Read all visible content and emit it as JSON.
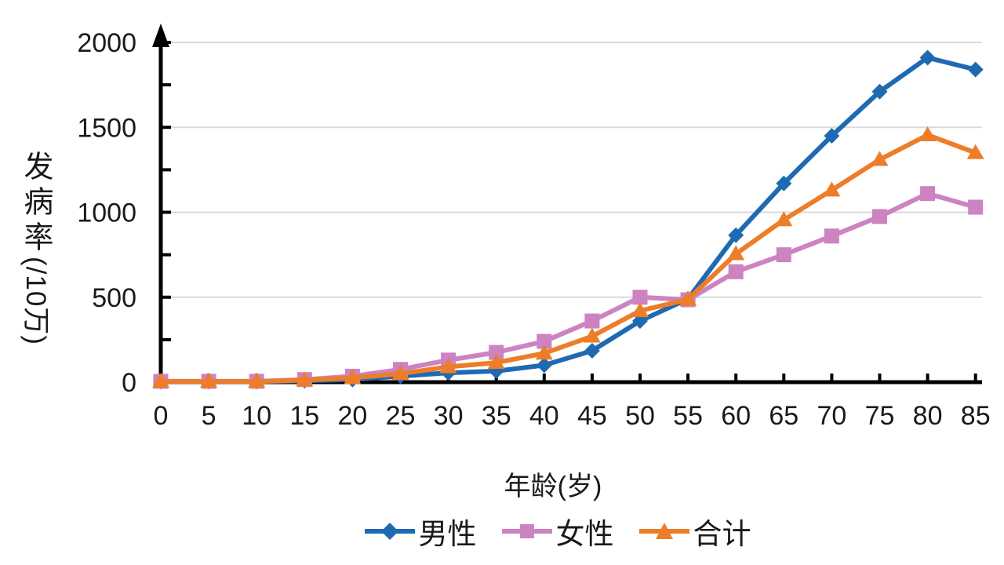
{
  "chart_data": {
    "type": "line",
    "title": "",
    "xlabel": "年龄(岁)",
    "ylabel": "发病率(/10万)",
    "ylabel_upright": "发病率",
    "ylabel_rotated": "(/10万)",
    "x": [
      0,
      5,
      10,
      15,
      20,
      25,
      30,
      35,
      40,
      45,
      50,
      55,
      60,
      65,
      70,
      75,
      80,
      85
    ],
    "xtick_labels": [
      "0",
      "5",
      "10",
      "15",
      "20",
      "25",
      "30",
      "35",
      "40",
      "45",
      "50",
      "55",
      "60",
      "65",
      "70",
      "75",
      "80",
      "85"
    ],
    "series": [
      {
        "key": "male",
        "name": "男性",
        "marker": "diamond",
        "color": "#1e6ab2",
        "values": [
          3,
          3,
          3,
          8,
          15,
          35,
          55,
          65,
          100,
          185,
          360,
          490,
          865,
          1170,
          1450,
          1710,
          1910,
          1840
        ]
      },
      {
        "key": "female",
        "name": "女性",
        "marker": "square",
        "color": "#cd82c1",
        "values": [
          5,
          5,
          5,
          15,
          35,
          75,
          130,
          175,
          240,
          360,
          500,
          485,
          650,
          750,
          860,
          975,
          1110,
          1030
        ]
      },
      {
        "key": "total",
        "name": "合计",
        "marker": "triangle",
        "color": "#ed7d28",
        "values": [
          4,
          4,
          4,
          12,
          25,
          50,
          90,
          115,
          170,
          270,
          420,
          487,
          755,
          955,
          1130,
          1310,
          1455,
          1350
        ]
      }
    ],
    "ylim": [
      0,
      2000
    ],
    "yticks_major": [
      0,
      500,
      1000,
      1500,
      2000
    ],
    "ytick_labels": [
      "0",
      "500",
      "1000",
      "1500",
      "2000"
    ],
    "yticks_minor": [
      250,
      750,
      1250,
      1750
    ],
    "grid": "horizontal",
    "gridline_color": "#d9d9d9",
    "axis_color": "#000000",
    "text_color": "#1a1a1a",
    "legend_position": "bottom"
  }
}
